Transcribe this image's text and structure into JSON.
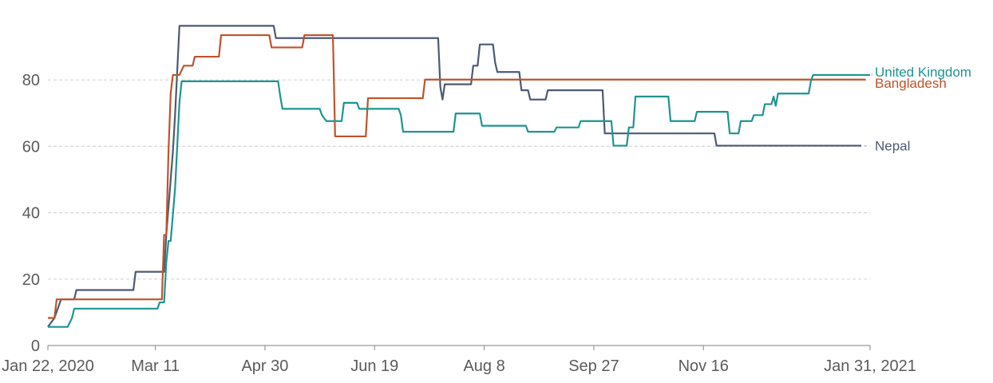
{
  "chart_data": {
    "type": "line",
    "title": "",
    "xlabel": "",
    "ylabel": "",
    "x_range": [
      "2020-01-22",
      "2021-01-31"
    ],
    "ylim": [
      0,
      100
    ],
    "y_ticks": [
      0,
      20,
      40,
      60,
      80
    ],
    "y_tick_labels": [
      "0",
      "20",
      "40",
      "60",
      "80"
    ],
    "x_ticks": [
      "2020-01-22",
      "2020-03-11",
      "2020-04-30",
      "2020-06-19",
      "2020-08-08",
      "2020-09-27",
      "2020-11-16",
      "2021-01-31"
    ],
    "x_tick_labels": [
      "Jan 22, 2020",
      "Mar 11",
      "Apr 30",
      "Jun 19",
      "Aug 8",
      "Sep 27",
      "Nov 16",
      "Jan 31, 2021"
    ],
    "grid": "horizontal dashed",
    "legend": "labels at line ends (right)",
    "series": [
      {
        "name": "Nepal",
        "color": "#4c5a75",
        "points": [
          [
            "2020-01-22",
            5.6
          ],
          [
            "2020-01-25",
            8.3
          ],
          [
            "2020-01-28",
            13.9
          ],
          [
            "2020-02-03",
            13.9
          ],
          [
            "2020-02-04",
            16.7
          ],
          [
            "2020-03-01",
            16.7
          ],
          [
            "2020-03-02",
            22.2
          ],
          [
            "2020-03-15",
            22.2
          ],
          [
            "2020-03-16",
            33.3
          ],
          [
            "2020-03-19",
            58.3
          ],
          [
            "2020-03-20",
            69.4
          ],
          [
            "2020-03-22",
            96.3
          ],
          [
            "2020-05-04",
            96.3
          ],
          [
            "2020-05-05",
            92.6
          ],
          [
            "2020-07-18",
            92.6
          ],
          [
            "2020-07-19",
            77.8
          ],
          [
            "2020-07-20",
            74.1
          ],
          [
            "2020-07-21",
            78.7
          ],
          [
            "2020-08-02",
            78.7
          ],
          [
            "2020-08-03",
            84.3
          ],
          [
            "2020-08-05",
            84.3
          ],
          [
            "2020-08-06",
            90.7
          ],
          [
            "2020-08-12",
            90.7
          ],
          [
            "2020-08-13",
            85.2
          ],
          [
            "2020-08-14",
            82.4
          ],
          [
            "2020-08-24",
            82.4
          ],
          [
            "2020-08-25",
            76.9
          ],
          [
            "2020-08-28",
            76.9
          ],
          [
            "2020-08-29",
            74.1
          ],
          [
            "2020-09-05",
            74.1
          ],
          [
            "2020-09-06",
            76.9
          ],
          [
            "2020-10-01",
            76.9
          ],
          [
            "2020-10-02",
            63.9
          ],
          [
            "2020-11-21",
            63.9
          ],
          [
            "2020-11-22",
            60.2
          ],
          [
            "2021-01-27",
            60.2
          ]
        ]
      },
      {
        "name": "Bangladesh",
        "color": "#c0532a",
        "points": [
          [
            "2020-01-22",
            8.3
          ],
          [
            "2020-01-25",
            8.3
          ],
          [
            "2020-01-26",
            13.9
          ],
          [
            "2020-03-14",
            13.9
          ],
          [
            "2020-03-15",
            33.3
          ],
          [
            "2020-03-16",
            33.3
          ],
          [
            "2020-03-17",
            58.3
          ],
          [
            "2020-03-18",
            75.9
          ],
          [
            "2020-03-19",
            81.5
          ],
          [
            "2020-03-22",
            81.5
          ],
          [
            "2020-03-24",
            84.3
          ],
          [
            "2020-03-28",
            84.3
          ],
          [
            "2020-03-29",
            87.0
          ],
          [
            "2020-04-09",
            87.0
          ],
          [
            "2020-04-10",
            93.5
          ],
          [
            "2020-05-02",
            93.5
          ],
          [
            "2020-05-03",
            89.8
          ],
          [
            "2020-05-17",
            89.8
          ],
          [
            "2020-05-18",
            93.5
          ],
          [
            "2020-05-31",
            93.5
          ],
          [
            "2020-06-01",
            63.0
          ],
          [
            "2020-06-15",
            63.0
          ],
          [
            "2020-06-16",
            74.5
          ],
          [
            "2020-07-11",
            74.5
          ],
          [
            "2020-07-12",
            80.1
          ],
          [
            "2021-01-29",
            80.1
          ]
        ]
      },
      {
        "name": "United Kingdom",
        "color": "#1d9591",
        "points": [
          [
            "2020-01-22",
            5.6
          ],
          [
            "2020-01-31",
            5.6
          ],
          [
            "2020-02-02",
            8.3
          ],
          [
            "2020-02-03",
            11.1
          ],
          [
            "2020-03-12",
            11.1
          ],
          [
            "2020-03-13",
            13.0
          ],
          [
            "2020-03-15",
            13.0
          ],
          [
            "2020-03-16",
            25.0
          ],
          [
            "2020-03-17",
            31.5
          ],
          [
            "2020-03-18",
            31.5
          ],
          [
            "2020-03-20",
            47.2
          ],
          [
            "2020-03-22",
            73.2
          ],
          [
            "2020-03-23",
            79.6
          ],
          [
            "2020-05-06",
            79.6
          ],
          [
            "2020-05-07",
            75.0
          ],
          [
            "2020-05-08",
            71.3
          ],
          [
            "2020-05-25",
            71.3
          ],
          [
            "2020-05-26",
            69.4
          ],
          [
            "2020-05-28",
            67.6
          ],
          [
            "2020-06-04",
            67.6
          ],
          [
            "2020-06-05",
            73.1
          ],
          [
            "2020-06-11",
            73.1
          ],
          [
            "2020-06-12",
            71.3
          ],
          [
            "2020-06-30",
            71.3
          ],
          [
            "2020-07-01",
            69.4
          ],
          [
            "2020-07-02",
            64.4
          ],
          [
            "2020-07-25",
            64.4
          ],
          [
            "2020-07-26",
            69.9
          ],
          [
            "2020-08-06",
            69.9
          ],
          [
            "2020-08-07",
            66.2
          ],
          [
            "2020-08-27",
            66.2
          ],
          [
            "2020-08-28",
            64.4
          ],
          [
            "2020-09-09",
            64.4
          ],
          [
            "2020-09-10",
            65.7
          ],
          [
            "2020-09-20",
            65.7
          ],
          [
            "2020-09-21",
            67.6
          ],
          [
            "2020-10-05",
            67.6
          ],
          [
            "2020-10-06",
            60.2
          ],
          [
            "2020-10-12",
            60.2
          ],
          [
            "2020-10-13",
            65.7
          ],
          [
            "2020-10-15",
            65.7
          ],
          [
            "2020-10-16",
            75.0
          ],
          [
            "2020-10-31",
            75.0
          ],
          [
            "2020-11-01",
            67.6
          ],
          [
            "2020-11-12",
            67.6
          ],
          [
            "2020-11-13",
            70.4
          ],
          [
            "2020-11-27",
            70.4
          ],
          [
            "2020-11-28",
            63.9
          ],
          [
            "2020-12-02",
            63.9
          ],
          [
            "2020-12-03",
            67.6
          ],
          [
            "2020-12-08",
            67.6
          ],
          [
            "2020-12-09",
            69.4
          ],
          [
            "2020-12-13",
            69.4
          ],
          [
            "2020-12-14",
            72.7
          ],
          [
            "2020-12-17",
            72.7
          ],
          [
            "2020-12-18",
            75.0
          ],
          [
            "2020-12-19",
            72.2
          ],
          [
            "2020-12-20",
            75.9
          ],
          [
            "2021-01-03",
            75.9
          ],
          [
            "2021-01-04",
            79.6
          ],
          [
            "2021-01-05",
            81.5
          ],
          [
            "2021-01-31",
            81.5
          ]
        ]
      }
    ]
  }
}
